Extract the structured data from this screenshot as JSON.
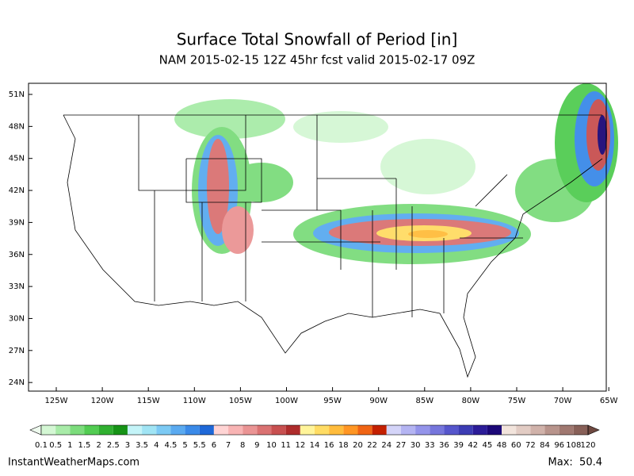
{
  "header": {
    "title": "Surface Total Snowfall of Period [in]",
    "subtitle": "NAM 2015-02-15 12Z 45hr fcst valid 2015-02-17 09Z"
  },
  "map": {
    "lat_labels": [
      "51N",
      "48N",
      "45N",
      "42N",
      "39N",
      "36N",
      "33N",
      "30N",
      "27N",
      "24N"
    ],
    "lon_labels": [
      "125W",
      "120W",
      "115W",
      "110W",
      "105W",
      "100W",
      "95W",
      "90W",
      "85W",
      "80W",
      "75W",
      "70W",
      "65W"
    ]
  },
  "legend": {
    "labels": [
      "0.1",
      "0.5",
      "1",
      "1.5",
      "2",
      "2.5",
      "3",
      "3.5",
      "4",
      "4.5",
      "5",
      "5.5",
      "6",
      "7",
      "8",
      "9",
      "10",
      "11",
      "12",
      "14",
      "16",
      "18",
      "20",
      "22",
      "24",
      "27",
      "30",
      "33",
      "36",
      "39",
      "42",
      "45",
      "48",
      "60",
      "72",
      "84",
      "96",
      "108",
      "120"
    ],
    "colors": [
      "#d4f7d4",
      "#a8eba8",
      "#7cdc7c",
      "#52cc52",
      "#30b030",
      "#169316",
      "#c4f4f8",
      "#a0e4f4",
      "#7ccaf4",
      "#5aaaf0",
      "#3a8ae8",
      "#1e68d8",
      "#ffd4d4",
      "#f8b4b4",
      "#ea9494",
      "#da7272",
      "#c85050",
      "#ae2c2c",
      "#fff49a",
      "#ffdc64",
      "#ffbc3c",
      "#ff9624",
      "#f06414",
      "#c42000",
      "#d4d4f8",
      "#b4b4f2",
      "#9494ea",
      "#7676dc",
      "#5656cc",
      "#3c3cb4",
      "#2c1c98",
      "#1c0878",
      "#f2e4dc",
      "#e2ccc4",
      "#d0b2aa",
      "#b8948c",
      "#a07870",
      "#886058"
    ],
    "under_color": "#eefaee",
    "over_color": "#6e4840"
  },
  "footer": {
    "site": "InstantWeatherMaps.com",
    "max": "Max:  50.4"
  }
}
